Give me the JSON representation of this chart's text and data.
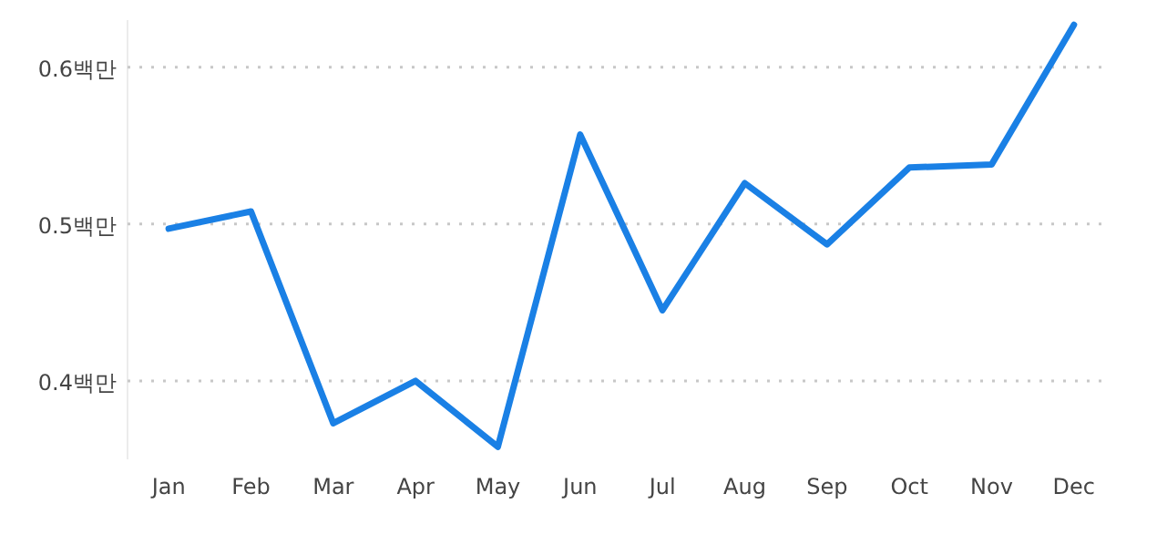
{
  "chart_data": {
    "type": "line",
    "categories": [
      "Jan",
      "Feb",
      "Mar",
      "Apr",
      "May",
      "Jun",
      "Jul",
      "Aug",
      "Sep",
      "Oct",
      "Nov",
      "Dec"
    ],
    "series": [
      {
        "color": "#1a80e5",
        "values": [
          0.497,
          0.508,
          0.373,
          0.4,
          0.358,
          0.557,
          0.445,
          0.526,
          0.487,
          0.536,
          0.538,
          0.627
        ]
      }
    ],
    "ylim": [
      0.35,
      0.63
    ],
    "yticks": [
      {
        "value": 0.4,
        "label": "0.4백만"
      },
      {
        "value": 0.5,
        "label": "0.5백만"
      },
      {
        "value": 0.6,
        "label": "0.6백만"
      }
    ],
    "grid": "y",
    "marker": "none",
    "line_style": "solid"
  }
}
